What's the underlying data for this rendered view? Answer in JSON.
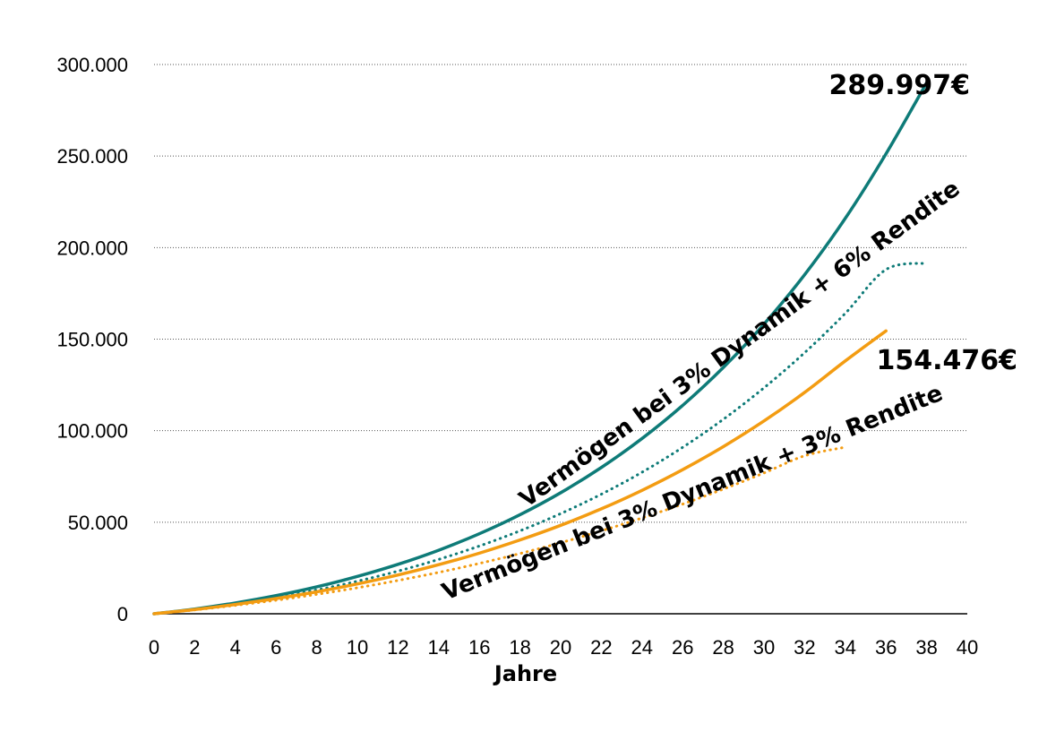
{
  "chart_data": {
    "type": "line",
    "xlabel": "Jahre",
    "ylabel": "",
    "xlim": [
      0,
      40
    ],
    "ylim": [
      0,
      300000
    ],
    "x_ticks": [
      "0",
      "2",
      "4",
      "6",
      "8",
      "10",
      "12",
      "14",
      "16",
      "18",
      "20",
      "22",
      "24",
      "26",
      "28",
      "30",
      "32",
      "34",
      "36",
      "38",
      "40"
    ],
    "y_ticks": [
      "0",
      "50.000",
      "100.000",
      "150.000",
      "200.000",
      "250.000",
      "300.000"
    ],
    "grid": "horizontal dotted",
    "x": [
      0,
      2,
      4,
      6,
      8,
      10,
      12,
      14,
      16,
      18,
      20,
      22,
      24,
      26,
      28,
      30,
      32,
      34,
      36,
      38,
      40
    ],
    "series": [
      {
        "color": "#0e7b78",
        "style": "solid",
        "values": [
          0,
          2600,
          5900,
          9900,
          14700,
          20400,
          27000,
          34700,
          43700,
          54100,
          66100,
          79900,
          95700,
          113800,
          134500,
          158200,
          185200,
          216000,
          251200,
          290000,
          290000
        ]
      },
      {
        "color": "#0e7b78",
        "style": "dotted",
        "values": [
          0,
          2400,
          5400,
          8900,
          13000,
          17800,
          23300,
          29700,
          37000,
          45300,
          54700,
          65300,
          77300,
          90900,
          106200,
          123400,
          142600,
          164100,
          188000,
          191500,
          191500
        ]
      },
      {
        "color": "#f39c12",
        "style": "solid",
        "values": [
          0,
          2300,
          5100,
          8300,
          12000,
          16300,
          21200,
          26800,
          33100,
          40300,
          48300,
          57300,
          67400,
          78700,
          91300,
          105300,
          120900,
          138100,
          154500,
          154500,
          154500
        ]
      },
      {
        "color": "#f39c12",
        "style": "dotted",
        "values": [
          0,
          2100,
          4600,
          7400,
          10600,
          14200,
          18200,
          22600,
          27500,
          32900,
          38800,
          45300,
          52300,
          59900,
          68100,
          76900,
          86300,
          91000,
          91000,
          91000,
          91000
        ]
      }
    ],
    "annotations": {
      "upper": "Vermögen bei 3% Dynamik + 6% Rendite",
      "lower": "Vermögen bei 3% Dynamik + 3% Rendite",
      "end_upper": "289.997€",
      "end_lower": "154.476€"
    }
  }
}
